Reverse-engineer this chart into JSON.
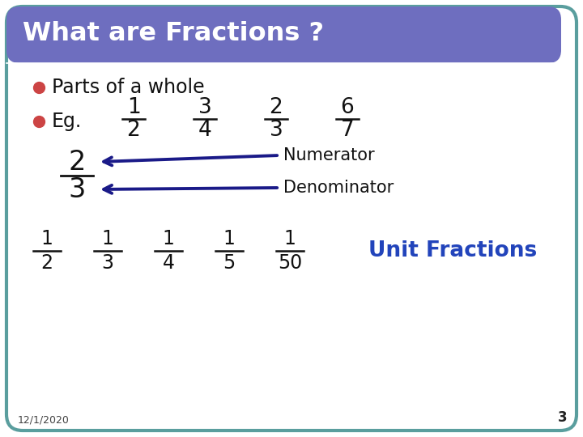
{
  "title": "What are Fractions ?",
  "title_bg": "#6E6EBF",
  "title_text_color": "#ffffff",
  "bg_color": "#ffffff",
  "border_color": "#5A9E9E",
  "bullet_color": "#cc4444",
  "bullet1": "Parts of a whole",
  "bullet2": "Eg.",
  "eg_fractions": [
    [
      "1",
      "2"
    ],
    [
      "3",
      "4"
    ],
    [
      "2",
      "3"
    ],
    [
      "6",
      "7"
    ]
  ],
  "unit_fractions": [
    [
      "1",
      "2"
    ],
    [
      "1",
      "3"
    ],
    [
      "1",
      "4"
    ],
    [
      "1",
      "5"
    ],
    [
      "1",
      "50"
    ]
  ],
  "label_numerator": "Numerator",
  "label_denominator": "Denominator",
  "label_unit": "Unit Fractions",
  "label_unit_color": "#2244bb",
  "arrow_color": "#1a1a88",
  "date_text": "12/1/2020",
  "page_num": "3",
  "fraction_color": "#111111",
  "main_text_color": "#111111"
}
